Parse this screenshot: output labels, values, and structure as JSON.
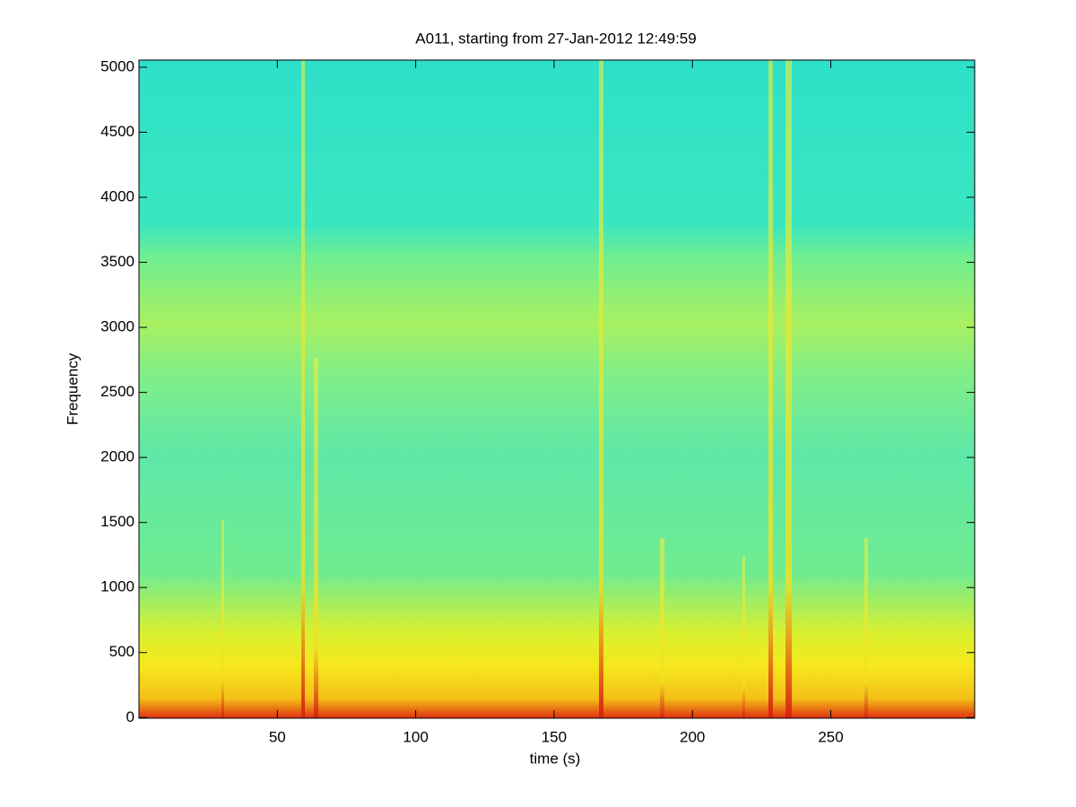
{
  "chart_data": {
    "type": "spectrogram",
    "title": "A011, starting from 27-Jan-2012 12:49:59",
    "x_label": "time (s)",
    "y_label": "Frequency",
    "xlim": [
      0,
      302
    ],
    "xticks": [
      50,
      100,
      150,
      200,
      250
    ],
    "ylim": [
      -5,
      5055
    ],
    "yticks": [
      0,
      500,
      1000,
      1500,
      2000,
      2500,
      3000,
      3500,
      4000,
      4500,
      5000
    ]
  }
}
